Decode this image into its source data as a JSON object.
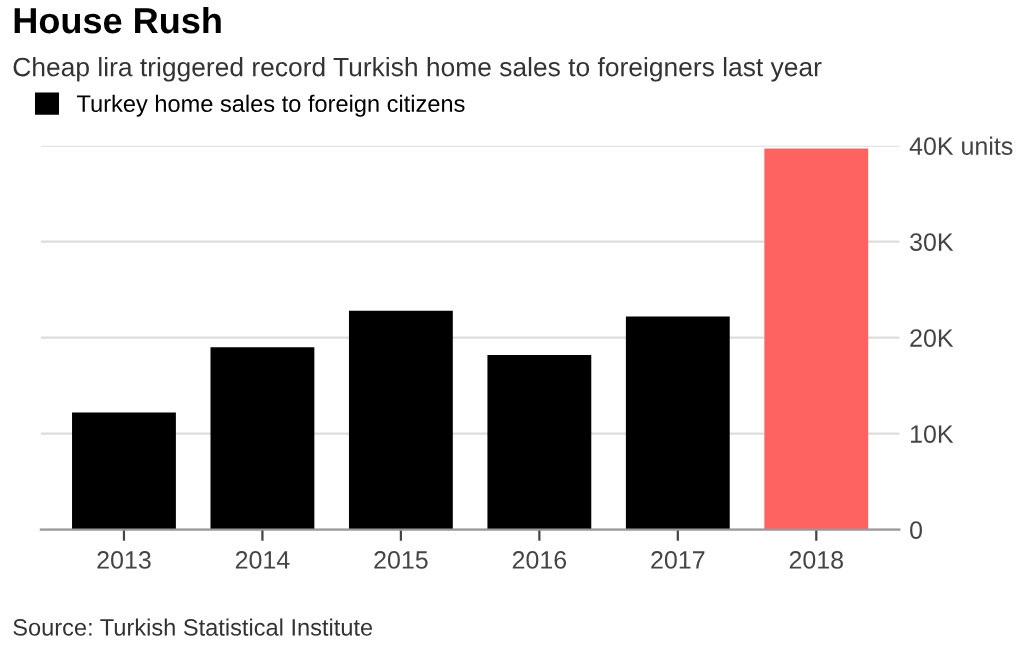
{
  "chart_data": {
    "type": "bar",
    "title": "House Rush",
    "subtitle": "Cheap lira triggered record Turkish home sales to foreigners last year",
    "categories": [
      "2013",
      "2014",
      "2015",
      "2016",
      "2017",
      "2018"
    ],
    "series": [
      {
        "name": "Turkey home sales to foreign citizens",
        "color": "#000000",
        "colors": [
          "#000000",
          "#000000",
          "#000000",
          "#000000",
          "#000000",
          "#ff6361"
        ],
        "values": [
          12.2,
          19.0,
          22.8,
          18.2,
          22.2,
          39.7
        ]
      }
    ],
    "ylim": [
      0,
      40
    ],
    "yticks": [
      0,
      {
        "value": 10,
        "label": "10K"
      },
      {
        "value": 20,
        "label": "20K"
      },
      {
        "value": 30,
        "label": "30K"
      },
      {
        "value": 40,
        "label": "40K units"
      }
    ],
    "grid": "y",
    "legend": "top left",
    "annotations": [
      "Source: Turkish Statistical Institute"
    ]
  }
}
